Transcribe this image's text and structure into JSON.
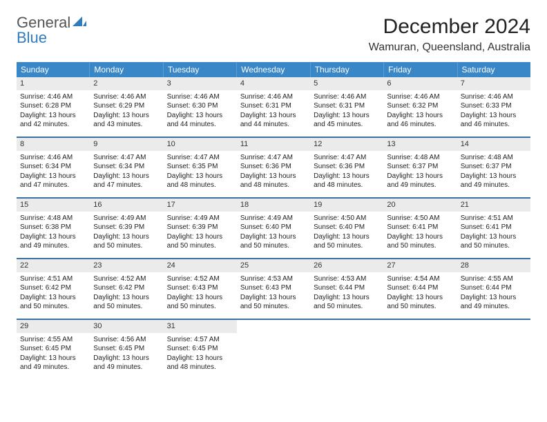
{
  "logo": {
    "part1": "General",
    "part2": "Blue"
  },
  "title": "December 2024",
  "location": "Wamuran, Queensland, Australia",
  "colors": {
    "header_bg": "#3a87c7",
    "band_bg": "#ebebeb",
    "rule": "#3a6fa0",
    "logo_accent": "#2f7bbf"
  },
  "dow": [
    "Sunday",
    "Monday",
    "Tuesday",
    "Wednesday",
    "Thursday",
    "Friday",
    "Saturday"
  ],
  "weeks": [
    [
      {
        "n": "1",
        "sr": "Sunrise: 4:46 AM",
        "ss": "Sunset: 6:28 PM",
        "d1": "Daylight: 13 hours",
        "d2": "and 42 minutes."
      },
      {
        "n": "2",
        "sr": "Sunrise: 4:46 AM",
        "ss": "Sunset: 6:29 PM",
        "d1": "Daylight: 13 hours",
        "d2": "and 43 minutes."
      },
      {
        "n": "3",
        "sr": "Sunrise: 4:46 AM",
        "ss": "Sunset: 6:30 PM",
        "d1": "Daylight: 13 hours",
        "d2": "and 44 minutes."
      },
      {
        "n": "4",
        "sr": "Sunrise: 4:46 AM",
        "ss": "Sunset: 6:31 PM",
        "d1": "Daylight: 13 hours",
        "d2": "and 44 minutes."
      },
      {
        "n": "5",
        "sr": "Sunrise: 4:46 AM",
        "ss": "Sunset: 6:31 PM",
        "d1": "Daylight: 13 hours",
        "d2": "and 45 minutes."
      },
      {
        "n": "6",
        "sr": "Sunrise: 4:46 AM",
        "ss": "Sunset: 6:32 PM",
        "d1": "Daylight: 13 hours",
        "d2": "and 46 minutes."
      },
      {
        "n": "7",
        "sr": "Sunrise: 4:46 AM",
        "ss": "Sunset: 6:33 PM",
        "d1": "Daylight: 13 hours",
        "d2": "and 46 minutes."
      }
    ],
    [
      {
        "n": "8",
        "sr": "Sunrise: 4:46 AM",
        "ss": "Sunset: 6:34 PM",
        "d1": "Daylight: 13 hours",
        "d2": "and 47 minutes."
      },
      {
        "n": "9",
        "sr": "Sunrise: 4:47 AM",
        "ss": "Sunset: 6:34 PM",
        "d1": "Daylight: 13 hours",
        "d2": "and 47 minutes."
      },
      {
        "n": "10",
        "sr": "Sunrise: 4:47 AM",
        "ss": "Sunset: 6:35 PM",
        "d1": "Daylight: 13 hours",
        "d2": "and 48 minutes."
      },
      {
        "n": "11",
        "sr": "Sunrise: 4:47 AM",
        "ss": "Sunset: 6:36 PM",
        "d1": "Daylight: 13 hours",
        "d2": "and 48 minutes."
      },
      {
        "n": "12",
        "sr": "Sunrise: 4:47 AM",
        "ss": "Sunset: 6:36 PM",
        "d1": "Daylight: 13 hours",
        "d2": "and 48 minutes."
      },
      {
        "n": "13",
        "sr": "Sunrise: 4:48 AM",
        "ss": "Sunset: 6:37 PM",
        "d1": "Daylight: 13 hours",
        "d2": "and 49 minutes."
      },
      {
        "n": "14",
        "sr": "Sunrise: 4:48 AM",
        "ss": "Sunset: 6:37 PM",
        "d1": "Daylight: 13 hours",
        "d2": "and 49 minutes."
      }
    ],
    [
      {
        "n": "15",
        "sr": "Sunrise: 4:48 AM",
        "ss": "Sunset: 6:38 PM",
        "d1": "Daylight: 13 hours",
        "d2": "and 49 minutes."
      },
      {
        "n": "16",
        "sr": "Sunrise: 4:49 AM",
        "ss": "Sunset: 6:39 PM",
        "d1": "Daylight: 13 hours",
        "d2": "and 50 minutes."
      },
      {
        "n": "17",
        "sr": "Sunrise: 4:49 AM",
        "ss": "Sunset: 6:39 PM",
        "d1": "Daylight: 13 hours",
        "d2": "and 50 minutes."
      },
      {
        "n": "18",
        "sr": "Sunrise: 4:49 AM",
        "ss": "Sunset: 6:40 PM",
        "d1": "Daylight: 13 hours",
        "d2": "and 50 minutes."
      },
      {
        "n": "19",
        "sr": "Sunrise: 4:50 AM",
        "ss": "Sunset: 6:40 PM",
        "d1": "Daylight: 13 hours",
        "d2": "and 50 minutes."
      },
      {
        "n": "20",
        "sr": "Sunrise: 4:50 AM",
        "ss": "Sunset: 6:41 PM",
        "d1": "Daylight: 13 hours",
        "d2": "and 50 minutes."
      },
      {
        "n": "21",
        "sr": "Sunrise: 4:51 AM",
        "ss": "Sunset: 6:41 PM",
        "d1": "Daylight: 13 hours",
        "d2": "and 50 minutes."
      }
    ],
    [
      {
        "n": "22",
        "sr": "Sunrise: 4:51 AM",
        "ss": "Sunset: 6:42 PM",
        "d1": "Daylight: 13 hours",
        "d2": "and 50 minutes."
      },
      {
        "n": "23",
        "sr": "Sunrise: 4:52 AM",
        "ss": "Sunset: 6:42 PM",
        "d1": "Daylight: 13 hours",
        "d2": "and 50 minutes."
      },
      {
        "n": "24",
        "sr": "Sunrise: 4:52 AM",
        "ss": "Sunset: 6:43 PM",
        "d1": "Daylight: 13 hours",
        "d2": "and 50 minutes."
      },
      {
        "n": "25",
        "sr": "Sunrise: 4:53 AM",
        "ss": "Sunset: 6:43 PM",
        "d1": "Daylight: 13 hours",
        "d2": "and 50 minutes."
      },
      {
        "n": "26",
        "sr": "Sunrise: 4:53 AM",
        "ss": "Sunset: 6:44 PM",
        "d1": "Daylight: 13 hours",
        "d2": "and 50 minutes."
      },
      {
        "n": "27",
        "sr": "Sunrise: 4:54 AM",
        "ss": "Sunset: 6:44 PM",
        "d1": "Daylight: 13 hours",
        "d2": "and 50 minutes."
      },
      {
        "n": "28",
        "sr": "Sunrise: 4:55 AM",
        "ss": "Sunset: 6:44 PM",
        "d1": "Daylight: 13 hours",
        "d2": "and 49 minutes."
      }
    ],
    [
      {
        "n": "29",
        "sr": "Sunrise: 4:55 AM",
        "ss": "Sunset: 6:45 PM",
        "d1": "Daylight: 13 hours",
        "d2": "and 49 minutes."
      },
      {
        "n": "30",
        "sr": "Sunrise: 4:56 AM",
        "ss": "Sunset: 6:45 PM",
        "d1": "Daylight: 13 hours",
        "d2": "and 49 minutes."
      },
      {
        "n": "31",
        "sr": "Sunrise: 4:57 AM",
        "ss": "Sunset: 6:45 PM",
        "d1": "Daylight: 13 hours",
        "d2": "and 48 minutes."
      },
      null,
      null,
      null,
      null
    ]
  ]
}
